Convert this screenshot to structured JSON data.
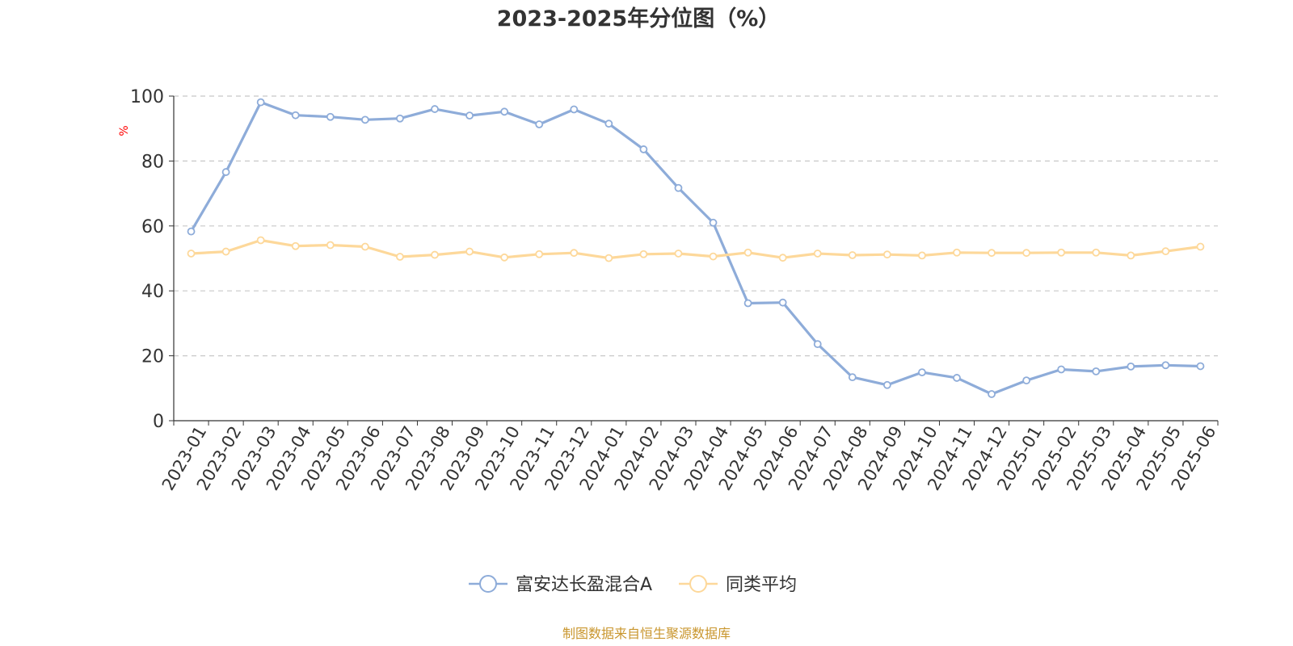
{
  "chart_data": {
    "type": "line",
    "title": "2023-2025年分位图（%）",
    "ylabel": "%",
    "xlabel": "",
    "ylim": [
      0,
      100
    ],
    "yticks": [
      0,
      20,
      40,
      60,
      80,
      100
    ],
    "grid": true,
    "legend_position": "bottom",
    "categories": [
      "2023-01",
      "2023-02",
      "2023-03",
      "2023-04",
      "2023-05",
      "2023-06",
      "2023-07",
      "2023-08",
      "2023-09",
      "2023-10",
      "2023-11",
      "2023-12",
      "2024-01",
      "2024-02",
      "2024-03",
      "2024-04",
      "2024-05",
      "2024-06",
      "2024-07",
      "2024-08",
      "2024-09",
      "2024-10",
      "2024-11",
      "2024-12",
      "2025-01",
      "2025-02",
      "2025-03",
      "2025-04",
      "2025-05",
      "2025-06"
    ],
    "series": [
      {
        "name": "富安达长盈混合A",
        "color": "#8eacd9",
        "values": [
          58.3,
          76.6,
          98.1,
          94.1,
          93.6,
          92.7,
          93.1,
          96.0,
          94.0,
          95.2,
          91.3,
          95.9,
          91.5,
          83.6,
          71.7,
          61.0,
          36.2,
          36.4,
          23.6,
          13.4,
          11.0,
          14.9,
          13.2,
          8.2,
          12.4,
          15.8,
          15.2,
          16.7,
          17.1,
          16.8
        ]
      },
      {
        "name": "同类平均",
        "color": "#fdd89a",
        "values": [
          51.5,
          52.1,
          55.6,
          53.8,
          54.1,
          53.6,
          50.5,
          51.1,
          52.1,
          50.3,
          51.3,
          51.7,
          50.1,
          51.3,
          51.5,
          50.6,
          51.8,
          50.2,
          51.5,
          51.0,
          51.2,
          50.9,
          51.8,
          51.7,
          51.7,
          51.8,
          51.8,
          50.9,
          52.2,
          53.6
        ]
      }
    ]
  },
  "footer": {
    "source_text": "制图数据来自恒生聚源数据库"
  }
}
